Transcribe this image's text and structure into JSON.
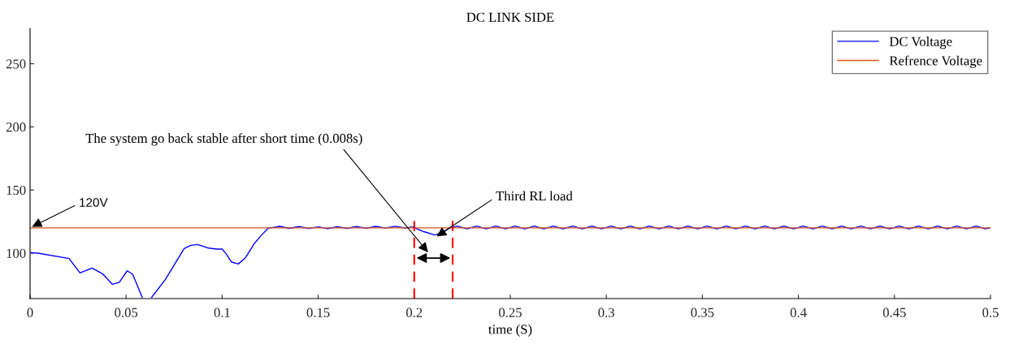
{
  "chart_data": {
    "type": "line",
    "title": "DC LINK SIDE",
    "xlabel": "time (S)",
    "xlim": [
      0,
      0.5
    ],
    "xticks": [
      0,
      0.05,
      0.1,
      0.15,
      0.2,
      0.25,
      0.3,
      0.35,
      0.4,
      0.45,
      0.5
    ],
    "ylim": [
      64,
      278
    ],
    "yticks": [
      100,
      150,
      200,
      250
    ],
    "grid": false,
    "legend": "top right",
    "series": [
      {
        "name": "DC Voltage",
        "color": "#0000ff",
        "x": [
          0,
          0.004,
          0.0203,
          0.026,
          0.0323,
          0.038,
          0.0429,
          0.0464,
          0.0506,
          0.0534,
          0.0584,
          0.061,
          0.0633,
          0.0704,
          0.0802,
          0.0837,
          0.0872,
          0.0929,
          0.0972,
          0.1,
          0.1021,
          0.1049,
          0.1084,
          0.112,
          0.1169,
          0.1203,
          0.1239,
          0.13,
          0.135,
          0.14,
          0.145,
          0.15,
          0.155,
          0.16,
          0.165,
          0.17,
          0.175,
          0.18,
          0.185,
          0.19,
          0.195,
          0.2,
          0.2017,
          0.205,
          0.2107,
          0.215,
          0.2184,
          0.2225,
          0.2275,
          0.2325,
          0.2375,
          0.2425,
          0.2475,
          0.2525,
          0.2575,
          0.2625,
          0.2675,
          0.2725,
          0.2775,
          0.2825,
          0.2875,
          0.2925,
          0.2975,
          0.3025,
          0.3075,
          0.3125,
          0.3175,
          0.3225,
          0.3275,
          0.3325,
          0.3375,
          0.3425,
          0.3475,
          0.3525,
          0.3575,
          0.3625,
          0.3675,
          0.3725,
          0.3775,
          0.3825,
          0.3875,
          0.3925,
          0.3975,
          0.4025,
          0.4075,
          0.4125,
          0.4175,
          0.4225,
          0.4275,
          0.4325,
          0.4375,
          0.4425,
          0.4475,
          0.4525,
          0.4575,
          0.4625,
          0.4675,
          0.4725,
          0.4775,
          0.4825,
          0.4875,
          0.4925,
          0.4975,
          0.5
        ],
        "values": [
          100.4,
          100,
          95.7,
          84.3,
          88.2,
          83.3,
          75.3,
          76.8,
          86,
          83.3,
          65,
          null,
          65,
          79,
          103.6,
          106.2,
          106.8,
          104,
          103.2,
          103.2,
          99.4,
          92.9,
          91.4,
          96.1,
          107.9,
          113.9,
          119.7,
          121.2,
          119.6,
          121.0,
          119.5,
          120.8,
          119.4,
          120.9,
          119.6,
          121.0,
          119.7,
          121.2,
          119.8,
          121.3,
          119.9,
          120.8,
          119,
          117,
          114.4,
          116.5,
          120,
          121.4,
          119.2,
          121.4,
          119.2,
          121.4,
          119.2,
          121.4,
          119.2,
          121.4,
          119.2,
          121.4,
          119.2,
          121.4,
          119.2,
          121.4,
          119.2,
          121.4,
          119.2,
          121.4,
          119.2,
          121.4,
          119.2,
          121.4,
          119.2,
          121.4,
          119.2,
          121.4,
          119.2,
          121.4,
          119.2,
          121.4,
          119.2,
          121.4,
          119.2,
          121.4,
          119.2,
          121.4,
          119.2,
          121.4,
          119.2,
          121.4,
          119.2,
          121.4,
          119.2,
          121.4,
          119.2,
          121.4,
          119.2,
          121.4,
          119.2,
          121.4,
          119.2,
          121.4,
          119.2,
          121.4,
          119.2,
          120.2
        ]
      },
      {
        "name": "Refrence Voltage",
        "color": "#d95319",
        "x": [
          0,
          0.5
        ],
        "values": [
          120,
          120
        ]
      }
    ],
    "ref_lines": [
      {
        "axis": "x",
        "value": 0.2,
        "color": "#ff0000",
        "line_style": "dashed"
      },
      {
        "axis": "x",
        "value": 0.22,
        "color": "#ff0000",
        "line_style": "dashed"
      }
    ],
    "annotations": [
      {
        "text": "120V",
        "x": 0,
        "y": 120
      },
      "The system go back stable after short time (0.008s)",
      {
        "text": "Third RL load",
        "x": 0.2107,
        "y": 112.2
      }
    ]
  }
}
